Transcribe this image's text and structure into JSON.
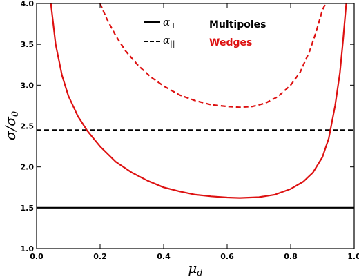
{
  "chart_data": {
    "type": "line",
    "xlim": [
      0.0,
      1.0
    ],
    "ylim": [
      1.0,
      4.0
    ],
    "xlabel_main": "μ",
    "xlabel_sub": "d",
    "ylabel_main": "σ/σ",
    "ylabel_sub": "0",
    "xticks": [
      "0.0",
      "0.2",
      "0.4",
      "0.6",
      "0.8",
      "1.0"
    ],
    "yticks": [
      "1.0",
      "1.5",
      "2.0",
      "2.5",
      "3.0",
      "3.5",
      "4.0"
    ],
    "grid": false,
    "legend_placement": "top-center",
    "legend_style": {
      "perp": {
        "main": "α",
        "sub": "⊥",
        "method": "Multipoles",
        "color": "#000000",
        "dash": "solid"
      },
      "par": {
        "main": "α",
        "sub": "||",
        "method": "Wedges",
        "color": "#dd1111",
        "dash": "dashed"
      }
    },
    "series": [
      {
        "method": "Multipoles",
        "param": "perp",
        "color": "#000000",
        "dash": "solid",
        "x": [
          0.0,
          1.0
        ],
        "y": [
          1.5,
          1.5
        ]
      },
      {
        "method": "Multipoles",
        "param": "par",
        "color": "#000000",
        "dash": "dashed",
        "x": [
          0.0,
          1.0
        ],
        "y": [
          2.45,
          2.45
        ]
      },
      {
        "method": "Wedges",
        "param": "perp",
        "color": "#dd1111",
        "dash": "solid",
        "x": [
          0.045,
          0.06,
          0.08,
          0.1,
          0.13,
          0.16,
          0.2,
          0.25,
          0.3,
          0.35,
          0.4,
          0.45,
          0.5,
          0.55,
          0.6,
          0.64,
          0.7,
          0.75,
          0.8,
          0.84,
          0.87,
          0.9,
          0.92,
          0.94,
          0.955,
          0.965,
          0.975
        ],
        "y": [
          4.0,
          3.5,
          3.12,
          2.87,
          2.62,
          2.44,
          2.25,
          2.06,
          1.93,
          1.83,
          1.75,
          1.7,
          1.66,
          1.64,
          1.625,
          1.62,
          1.63,
          1.66,
          1.73,
          1.82,
          1.93,
          2.12,
          2.35,
          2.75,
          3.15,
          3.55,
          4.0
        ]
      },
      {
        "method": "Wedges",
        "param": "par",
        "color": "#dd1111",
        "dash": "dashed",
        "x": [
          0.2,
          0.22,
          0.25,
          0.28,
          0.32,
          0.36,
          0.4,
          0.45,
          0.5,
          0.55,
          0.6,
          0.64,
          0.68,
          0.72,
          0.76,
          0.8,
          0.83,
          0.86,
          0.88,
          0.9,
          0.91
        ],
        "y": [
          4.0,
          3.82,
          3.6,
          3.42,
          3.24,
          3.1,
          2.99,
          2.88,
          2.81,
          2.76,
          2.74,
          2.73,
          2.74,
          2.78,
          2.86,
          3.0,
          3.16,
          3.42,
          3.65,
          3.92,
          4.0
        ]
      }
    ]
  }
}
